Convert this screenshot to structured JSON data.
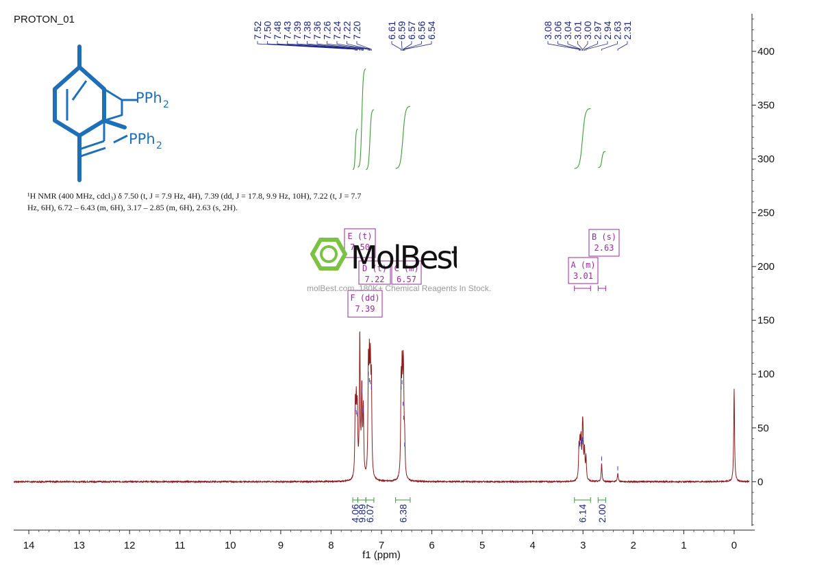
{
  "title": "PROTON_01",
  "structure": {
    "label_top": "PPh",
    "label_bottom": "PPh",
    "subscript": "2"
  },
  "nmr_description": {
    "line1": "¹H NMR (400 MHz, cdcl₃) δ 7.50 (t, J = 7.9 Hz, 4H), 7.39 (dd, J = 17.8, 9.9 Hz, 10H), 7.22 (t, J = 7.7",
    "line2": "Hz, 6H), 6.72 – 6.43 (m, 6H), 3.17 – 2.85 (m, 6H), 2.63 (s, 2H)."
  },
  "watermark": {
    "brand": "MolBest",
    "tagline": "molBest.com, 180K+ Chemical Reagents In Stock."
  },
  "colors": {
    "spectrum": "#8b1a1a",
    "integral": "#3a9a3a",
    "peak_label": "#1a237e",
    "multiplet_box": "#9a2a9a",
    "brand_green": "#7cc242",
    "structure": "#1f6fb8"
  },
  "chart_data": {
    "type": "line",
    "xlabel": "f1 (ppm)",
    "ylabel": "",
    "x_reversed": true,
    "xlim": [
      14.3,
      -0.3
    ],
    "ylim": [
      -45,
      435
    ],
    "x_ticks": [
      14,
      13,
      12,
      11,
      10,
      9,
      8,
      7,
      6,
      5,
      4,
      3,
      2,
      1,
      0
    ],
    "y_ticks": [
      0,
      50,
      100,
      150,
      200,
      250,
      300,
      350,
      400
    ],
    "peaks_group1": [
      "7.52",
      "7.50",
      "7.48",
      "7.43",
      "7.39",
      "7.38",
      "7.36",
      "7.26",
      "7.24",
      "7.22",
      "7.20"
    ],
    "peaks_group2": [
      "6.61",
      "6.59",
      "6.57",
      "6.56",
      "6.54"
    ],
    "peaks_group3": [
      "3.08",
      "3.06",
      "3.04",
      "3.01",
      "3.00",
      "2.97",
      "2.94",
      "2.63",
      "2.31"
    ],
    "signals": [
      {
        "ppm": 7.52,
        "height": 63
      },
      {
        "ppm": 7.5,
        "height": 60
      },
      {
        "ppm": 7.48,
        "height": 58
      },
      {
        "ppm": 7.43,
        "height": 133
      },
      {
        "ppm": 7.39,
        "height": 80
      },
      {
        "ppm": 7.36,
        "height": 62
      },
      {
        "ppm": 7.26,
        "height": 96
      },
      {
        "ppm": 7.24,
        "height": 90
      },
      {
        "ppm": 7.22,
        "height": 88
      },
      {
        "ppm": 7.2,
        "height": 83
      },
      {
        "ppm": 6.61,
        "height": 83
      },
      {
        "ppm": 6.59,
        "height": 88
      },
      {
        "ppm": 6.57,
        "height": 68
      },
      {
        "ppm": 6.56,
        "height": 55
      },
      {
        "ppm": 6.54,
        "height": 30
      },
      {
        "ppm": 3.08,
        "height": 28
      },
      {
        "ppm": 3.06,
        "height": 30
      },
      {
        "ppm": 3.04,
        "height": 33
      },
      {
        "ppm": 3.01,
        "height": 35
      },
      {
        "ppm": 3.0,
        "height": 32
      },
      {
        "ppm": 2.97,
        "height": 27
      },
      {
        "ppm": 2.94,
        "height": 20
      },
      {
        "ppm": 2.63,
        "height": 17
      },
      {
        "ppm": 2.31,
        "height": 8
      },
      {
        "ppm": 0.0,
        "height": 86
      }
    ],
    "integrals": [
      {
        "from": 7.57,
        "to": 7.47,
        "value": "4.06",
        "y_start": 290,
        "y_end": 328
      },
      {
        "from": 7.47,
        "to": 7.31,
        "value": "9.89",
        "y_start": 292,
        "y_end": 384
      },
      {
        "from": 7.31,
        "to": 7.15,
        "value": "6.07",
        "y_start": 290,
        "y_end": 346
      },
      {
        "from": 6.72,
        "to": 6.43,
        "value": "6.38",
        "y_start": 291,
        "y_end": 349
      },
      {
        "from": 3.17,
        "to": 2.85,
        "value": "6.14",
        "y_start": 291,
        "y_end": 347
      },
      {
        "from": 2.7,
        "to": 2.55,
        "value": "2.00",
        "y_start": 292,
        "y_end": 307
      }
    ],
    "multiplets": [
      {
        "label": "E (t)",
        "value": "7.50"
      },
      {
        "label": "D (t)",
        "value": "7.22"
      },
      {
        "label": "C (m)",
        "value": "6.57"
      },
      {
        "label": "F (dd)",
        "value": "7.39"
      },
      {
        "label": "A (m)",
        "value": "3.01"
      },
      {
        "label": "B (s)",
        "value": "2.63"
      }
    ]
  }
}
